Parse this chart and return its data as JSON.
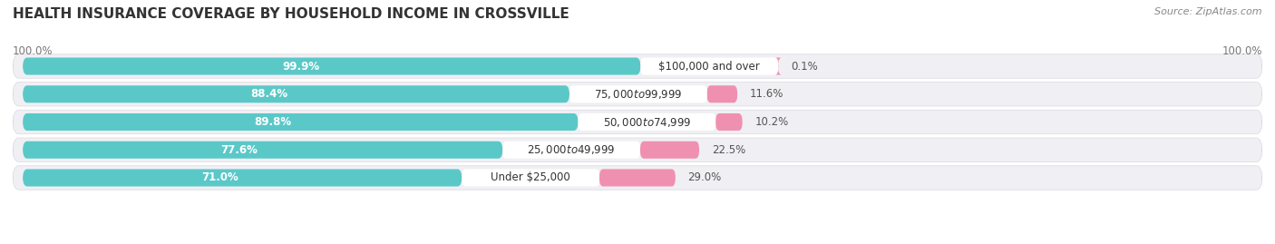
{
  "title": "HEALTH INSURANCE COVERAGE BY HOUSEHOLD INCOME IN CROSSVILLE",
  "source": "Source: ZipAtlas.com",
  "categories": [
    "Under $25,000",
    "$25,000 to $49,999",
    "$50,000 to $74,999",
    "$75,000 to $99,999",
    "$100,000 and over"
  ],
  "with_coverage": [
    71.0,
    77.6,
    89.8,
    88.4,
    99.9
  ],
  "without_coverage": [
    29.0,
    22.5,
    10.2,
    11.6,
    0.1
  ],
  "color_with": "#5bc8c8",
  "color_without": "#f090b0",
  "background_color": "#ffffff",
  "row_bg_color": "#f0f0f4",
  "title_fontsize": 11,
  "label_fontsize": 8.5,
  "source_fontsize": 8,
  "legend_fontsize": 9,
  "bar_height": 0.62,
  "left_label_pct": [
    "71.0%",
    "77.6%",
    "89.8%",
    "88.4%",
    "99.9%"
  ],
  "right_label_pct": [
    "29.0%",
    "22.5%",
    "10.2%",
    "11.6%",
    "0.1%"
  ],
  "x_left_label": "100.0%",
  "x_right_label": "100.0%"
}
